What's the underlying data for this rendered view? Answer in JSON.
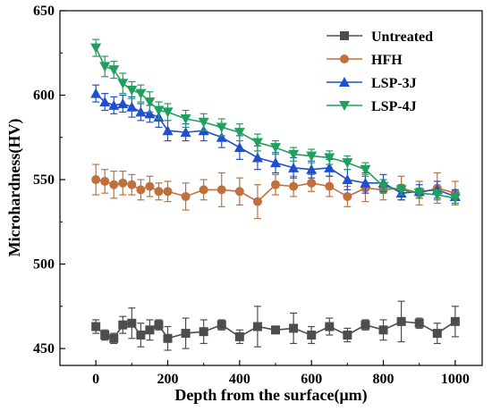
{
  "chart_data": {
    "type": "line",
    "title": "",
    "xlabel": "Depth from the surface(μm)",
    "ylabel": "Microhardness(HV)",
    "xlim": [
      -100,
      1075
    ],
    "ylim": [
      440,
      650
    ],
    "xticks": [
      0,
      200,
      400,
      600,
      800,
      1000
    ],
    "yticks": [
      450,
      500,
      550,
      600,
      650
    ],
    "grid": false,
    "legend_position": "top-right",
    "series": [
      {
        "name": "Untreated",
        "color": "#4d4d4d",
        "marker": "square",
        "x": [
          0,
          25,
          50,
          75,
          100,
          125,
          150,
          175,
          200,
          250,
          300,
          350,
          400,
          450,
          500,
          550,
          600,
          650,
          700,
          750,
          800,
          850,
          900,
          950,
          1000
        ],
        "y": [
          463,
          458,
          456,
          464,
          465,
          458,
          461,
          464,
          456,
          459,
          460,
          464,
          457,
          463,
          461,
          462,
          458,
          463,
          458,
          464,
          461,
          466,
          465,
          459,
          466
        ],
        "err": [
          4,
          3,
          3,
          5,
          9,
          7,
          6,
          3,
          7,
          9,
          7,
          3,
          4,
          12,
          2,
          9,
          5,
          5,
          4,
          3,
          6,
          12,
          3,
          6,
          9
        ]
      },
      {
        "name": "HFH",
        "color": "#c0703c",
        "marker": "circle",
        "x": [
          0,
          25,
          50,
          75,
          100,
          125,
          150,
          175,
          200,
          250,
          300,
          350,
          400,
          450,
          500,
          550,
          600,
          650,
          700,
          750,
          800,
          850,
          900,
          950,
          1000
        ],
        "y": [
          550,
          549,
          547,
          548,
          547,
          544,
          546,
          543,
          543,
          540,
          544,
          544,
          543,
          537,
          547,
          546,
          548,
          546,
          540,
          545,
          544,
          545,
          542,
          545,
          542
        ],
        "err": [
          9,
          7,
          8,
          7,
          6,
          6,
          6,
          5,
          6,
          8,
          6,
          10,
          8,
          10,
          6,
          6,
          5,
          6,
          6,
          8,
          6,
          7,
          7,
          9,
          7
        ]
      },
      {
        "name": "LSP-3J",
        "color": "#1f4fcc",
        "marker": "triangle-up",
        "x": [
          0,
          25,
          50,
          75,
          100,
          125,
          150,
          175,
          200,
          250,
          300,
          350,
          400,
          450,
          500,
          550,
          600,
          650,
          700,
          750,
          800,
          850,
          900,
          950,
          1000
        ],
        "y": [
          601,
          596,
          594,
          595,
          593,
          590,
          589,
          587,
          579,
          578,
          579,
          575,
          569,
          563,
          560,
          557,
          556,
          557,
          550,
          548,
          548,
          542,
          543,
          544,
          540
        ],
        "err": [
          5,
          5,
          5,
          5,
          6,
          5,
          5,
          6,
          6,
          5,
          6,
          6,
          7,
          7,
          6,
          6,
          5,
          5,
          6,
          6,
          5,
          4,
          4,
          5,
          4
        ]
      },
      {
        "name": "LSP-4J",
        "color": "#1fa05e",
        "marker": "triangle-down",
        "x": [
          0,
          25,
          50,
          75,
          100,
          125,
          150,
          175,
          200,
          250,
          300,
          350,
          400,
          450,
          500,
          550,
          600,
          650,
          700,
          750,
          800,
          850,
          900,
          950,
          1000
        ],
        "y": [
          628,
          617,
          615,
          607,
          603,
          601,
          596,
          591,
          590,
          586,
          584,
          581,
          578,
          572,
          569,
          565,
          564,
          563,
          560,
          556,
          546,
          544,
          542,
          541,
          539
        ],
        "err": [
          5,
          6,
          5,
          6,
          5,
          5,
          6,
          5,
          5,
          5,
          5,
          5,
          5,
          5,
          4,
          4,
          4,
          4,
          4,
          4,
          4,
          3,
          3,
          3,
          3
        ]
      }
    ]
  }
}
